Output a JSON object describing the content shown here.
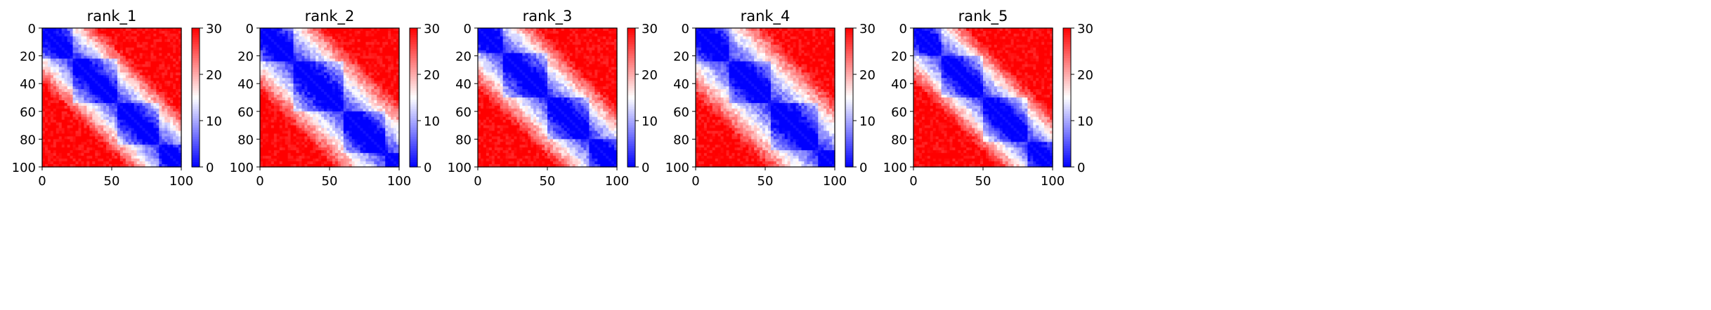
{
  "chart_data": [
    {
      "type": "heatmap",
      "title": "rank_1",
      "xlim": [
        0,
        100
      ],
      "ylim": [
        100,
        0
      ],
      "x_ticks": [
        "0",
        "50",
        "100"
      ],
      "y_ticks": [
        "0",
        "20",
        "40",
        "60",
        "80",
        "100"
      ],
      "colorbar": {
        "min": 0,
        "max": 30,
        "ticks": [
          "0",
          "10",
          "20",
          "30"
        ],
        "colormap": "bwr"
      },
      "description": "Symmetric 100x100 matrix; low values (blue) along the diagonal band, high values (red) in off-diagonal corners",
      "band_halfwidth": 26,
      "blocks": [
        0,
        22,
        55,
        85,
        100
      ]
    },
    {
      "type": "heatmap",
      "title": "rank_2",
      "xlim": [
        0,
        100
      ],
      "ylim": [
        100,
        0
      ],
      "x_ticks": [
        "0",
        "50",
        "100"
      ],
      "y_ticks": [
        "0",
        "20",
        "40",
        "60",
        "80",
        "100"
      ],
      "colorbar": {
        "min": 0,
        "max": 30,
        "ticks": [
          "0",
          "10",
          "20",
          "30"
        ],
        "colormap": "bwr"
      },
      "band_halfwidth": 30,
      "blocks": [
        0,
        25,
        60,
        90,
        100
      ]
    },
    {
      "type": "heatmap",
      "title": "rank_3",
      "xlim": [
        0,
        100
      ],
      "ylim": [
        100,
        0
      ],
      "x_ticks": [
        "0",
        "50",
        "100"
      ],
      "y_ticks": [
        "0",
        "20",
        "40",
        "60",
        "80",
        "100"
      ],
      "colorbar": {
        "min": 0,
        "max": 30,
        "ticks": [
          "0",
          "10",
          "20",
          "30"
        ],
        "colormap": "bwr"
      },
      "band_halfwidth": 28,
      "blocks": [
        0,
        18,
        50,
        80,
        100
      ]
    },
    {
      "type": "heatmap",
      "title": "rank_4",
      "xlim": [
        0,
        100
      ],
      "ylim": [
        100,
        0
      ],
      "x_ticks": [
        "0",
        "50",
        "100"
      ],
      "y_ticks": [
        "0",
        "20",
        "40",
        "60",
        "80",
        "100"
      ],
      "colorbar": {
        "min": 0,
        "max": 30,
        "ticks": [
          "0",
          "10",
          "20",
          "30"
        ],
        "colormap": "bwr"
      },
      "band_halfwidth": 32,
      "blocks": [
        0,
        25,
        55,
        88,
        100
      ]
    },
    {
      "type": "heatmap",
      "title": "rank_5",
      "xlim": [
        0,
        100
      ],
      "ylim": [
        100,
        0
      ],
      "x_ticks": [
        "0",
        "50",
        "100"
      ],
      "y_ticks": [
        "0",
        "20",
        "40",
        "60",
        "80",
        "100"
      ],
      "colorbar": {
        "min": 0,
        "max": 30,
        "ticks": [
          "0",
          "10",
          "20",
          "30"
        ],
        "colormap": "bwr"
      },
      "band_halfwidth": 25,
      "blocks": [
        0,
        20,
        50,
        82,
        100
      ]
    }
  ]
}
